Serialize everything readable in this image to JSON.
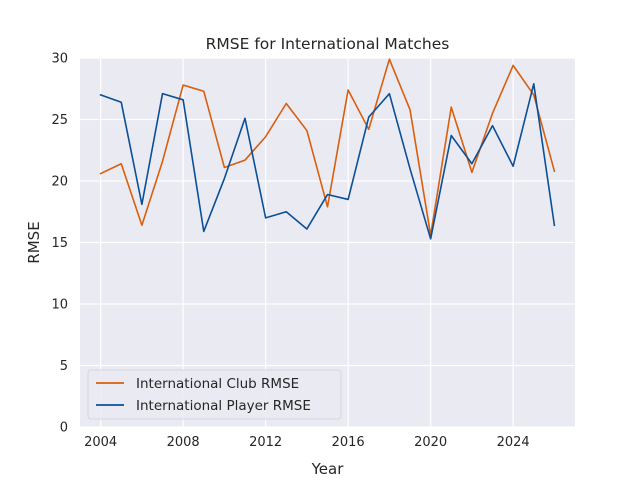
{
  "chart_data": {
    "type": "line",
    "title": "RMSE for International Matches",
    "xlabel": "Year",
    "ylabel": "RMSE",
    "xlim": [
      2003,
      2027
    ],
    "ylim": [
      0,
      30
    ],
    "xticks": [
      2004,
      2008,
      2012,
      2016,
      2020,
      2024
    ],
    "yticks": [
      0,
      5,
      10,
      15,
      20,
      25,
      30
    ],
    "grid": true,
    "legend_position": "lower-left",
    "x": [
      2004,
      2005,
      2006,
      2007,
      2008,
      2009,
      2010,
      2011,
      2012,
      2013,
      2014,
      2015,
      2016,
      2017,
      2018,
      2019,
      2020,
      2021,
      2022,
      2023,
      2024,
      2025,
      2026
    ],
    "series": [
      {
        "name": "International Club RMSE",
        "color": "#d95f0e",
        "values": [
          20.6,
          21.4,
          16.4,
          21.6,
          27.8,
          27.3,
          21.1,
          21.7,
          23.6,
          26.3,
          24.1,
          17.9,
          27.4,
          24.2,
          29.9,
          25.8,
          15.6,
          26.0,
          20.7,
          25.5,
          29.4,
          27.0,
          20.8
        ]
      },
      {
        "name": "International Player RMSE",
        "color": "#0b4f97",
        "values": [
          27.0,
          26.4,
          18.1,
          27.1,
          26.6,
          15.9,
          20.2,
          25.1,
          17.0,
          17.5,
          16.1,
          18.9,
          18.5,
          25.2,
          27.1,
          21.0,
          15.3,
          23.7,
          21.4,
          24.5,
          21.2,
          27.9,
          16.4
        ]
      }
    ]
  }
}
